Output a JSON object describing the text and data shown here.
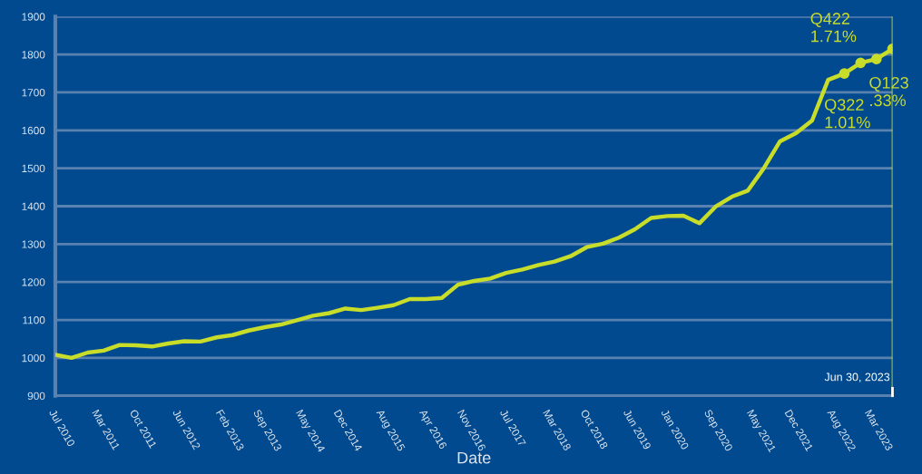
{
  "chart_data": {
    "type": "line",
    "xlabel": "Date",
    "x": [
      "2010-06-30",
      "2010-09-30",
      "2010-12-31",
      "2011-03-31",
      "2011-06-30",
      "2011-09-30",
      "2011-12-31",
      "2012-03-31",
      "2012-06-30",
      "2012-09-30",
      "2012-12-31",
      "2013-03-31",
      "2013-06-30",
      "2013-09-30",
      "2013-12-31",
      "2014-03-31",
      "2014-06-30",
      "2014-09-30",
      "2014-12-31",
      "2015-03-31",
      "2015-06-30",
      "2015-09-30",
      "2015-12-31",
      "2016-03-31",
      "2016-06-30",
      "2016-09-30",
      "2016-12-31",
      "2017-03-31",
      "2017-06-30",
      "2017-09-30",
      "2017-12-31",
      "2018-03-31",
      "2018-06-30",
      "2018-09-30",
      "2018-12-31",
      "2019-03-31",
      "2019-06-30",
      "2019-09-30",
      "2019-12-31",
      "2020-03-31",
      "2020-06-30",
      "2020-09-30",
      "2020-12-31",
      "2021-03-31",
      "2021-06-30",
      "2021-09-30",
      "2021-12-31",
      "2022-03-31",
      "2022-06-30",
      "2022-09-30",
      "2022-12-31",
      "2023-03-31",
      "2023-06-30"
    ],
    "series": [
      {
        "color": "#c8dc2a",
        "marker": "none",
        "line_style": "solid",
        "values": [
          1008,
          1000,
          1014,
          1019,
          1034,
          1033,
          1030,
          1038,
          1044,
          1043,
          1054,
          1060,
          1072,
          1081,
          1088,
          1099,
          1111,
          1118,
          1130,
          1126,
          1132,
          1139,
          1155,
          1155,
          1158,
          1193,
          1203,
          1209,
          1224,
          1233,
          1245,
          1254,
          1268,
          1292,
          1301,
          1317,
          1339,
          1369,
          1374,
          1375,
          1355,
          1399,
          1425,
          1441,
          1500,
          1571,
          1593,
          1626,
          1733,
          1750,
          1778,
          1788,
          1815
        ]
      },
      {
        "type": "scatter",
        "color": "#c8dc2a",
        "marker": "circle",
        "x": [
          "2022-09-30",
          "2022-12-31",
          "2023-03-31",
          "2023-06-30"
        ],
        "values": [
          1750,
          1778,
          1788,
          1815
        ]
      }
    ],
    "annotations": [
      {
        "text": "Q322\n1.01%",
        "x": "2022-09-30",
        "y": 1750
      },
      {
        "text": "Q422\n1.71%",
        "x": "2022-12-31",
        "y": 1778
      },
      {
        "text": "Q123\n.33%",
        "x": "2023-03-31",
        "y": 1788
      }
    ],
    "ref_lines": [
      {
        "axis": "x",
        "value": "2023-06-30",
        "label": "Jun 30, 2023",
        "color": "#c8dc2a"
      }
    ],
    "xlim": [
      "2010-06-30",
      "2023-06-30"
    ],
    "xticks": [
      {
        "value": "2010-07-01",
        "label": "Jul 2010"
      },
      {
        "value": "2011-03-01",
        "label": "Mar 2011"
      },
      {
        "value": "2011-10-01",
        "label": "Oct 2011"
      },
      {
        "value": "2012-06-01",
        "label": "Jun 2012"
      },
      {
        "value": "2013-02-01",
        "label": "Feb 2013"
      },
      {
        "value": "2013-09-01",
        "label": "Sep 2013"
      },
      {
        "value": "2014-05-01",
        "label": "May 2014"
      },
      {
        "value": "2014-12-01",
        "label": "Dec 2014"
      },
      {
        "value": "2015-08-01",
        "label": "Aug 2015"
      },
      {
        "value": "2016-04-01",
        "label": "Apr 2016"
      },
      {
        "value": "2016-11-01",
        "label": "Nov 2016"
      },
      {
        "value": "2017-07-01",
        "label": "Jul 2017"
      },
      {
        "value": "2018-03-01",
        "label": "Mar 2018"
      },
      {
        "value": "2018-10-01",
        "label": "Oct 2018"
      },
      {
        "value": "2019-06-01",
        "label": "Jun 2019"
      },
      {
        "value": "2020-01-01",
        "label": "Jan 2020"
      },
      {
        "value": "2020-09-01",
        "label": "Sep 2020"
      },
      {
        "value": "2021-05-01",
        "label": "May 2021"
      },
      {
        "value": "2021-12-01",
        "label": "Dec 2021"
      },
      {
        "value": "2022-08-01",
        "label": "Aug 2022"
      },
      {
        "value": "2023-03-01",
        "label": "Mar 2023"
      }
    ],
    "ylim": [
      900,
      1900
    ],
    "yticks": [
      900,
      1000,
      1100,
      1200,
      1300,
      1400,
      1500,
      1600,
      1700,
      1800,
      1900
    ],
    "grid": "y"
  }
}
